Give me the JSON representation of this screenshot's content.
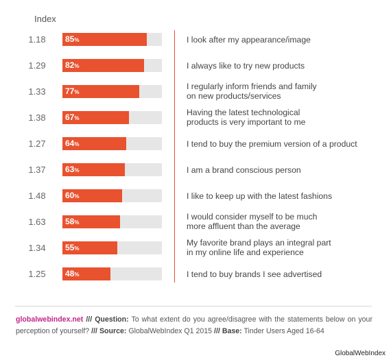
{
  "chart_data": {
    "type": "bar",
    "orientation": "horizontal",
    "index_header": "Index",
    "categories": [
      "I look after my appearance/image",
      "I always like to try new products",
      "I regularly inform friends and family on new products/services",
      "Having the latest technological products is very important to me",
      "I tend to buy the premium version of a product",
      "I am a brand conscious person",
      "I like to keep up with the latest fashions",
      "I would consider myself to be much more affluent than the average",
      "My favorite brand plays an integral part in my online life and experience",
      "I tend to buy brands I see advertised"
    ],
    "label_lines": [
      [
        "I look after my appearance/image"
      ],
      [
        "I always like to try new products"
      ],
      [
        "I regularly inform friends and family",
        "on new products/services"
      ],
      [
        "Having the latest technological",
        "products is very important to me"
      ],
      [
        "I tend to buy the premium version of a product"
      ],
      [
        "I am a brand conscious person"
      ],
      [
        "I like to keep up with the latest fashions"
      ],
      [
        "I would consider myself to be much",
        "more affluent than the average"
      ],
      [
        "My favorite brand plays an integral part",
        "in my online life and experience"
      ],
      [
        "I tend to buy brands I see advertised"
      ]
    ],
    "values": [
      85,
      82,
      77,
      67,
      64,
      63,
      60,
      58,
      55,
      48
    ],
    "index": [
      "1.18",
      "1.29",
      "1.33",
      "1.38",
      "1.27",
      "1.37",
      "1.48",
      "1.63",
      "1.34",
      "1.25"
    ],
    "value_suffix": "%",
    "xlim": [
      0,
      100
    ],
    "colors": {
      "bar": "#e8522e",
      "track": "#e6e6e6",
      "line": "#e8522e"
    }
  },
  "footnote": {
    "site": "globalwebindex.net",
    "sep1": "///",
    "question_label": "Question:",
    "question_text": "To what extent do you agree/disagree with the statements below on your perception of yourself?",
    "sep2": "///",
    "source_label": "Source:",
    "source_text": "GlobalWebIndex Q1 2015",
    "sep3": "///",
    "base_label": "Base:",
    "base_text": "Tinder Users Aged 16-64"
  },
  "credit": "GlobalWebIndex",
  "colors": {
    "site": "#c0288a"
  }
}
